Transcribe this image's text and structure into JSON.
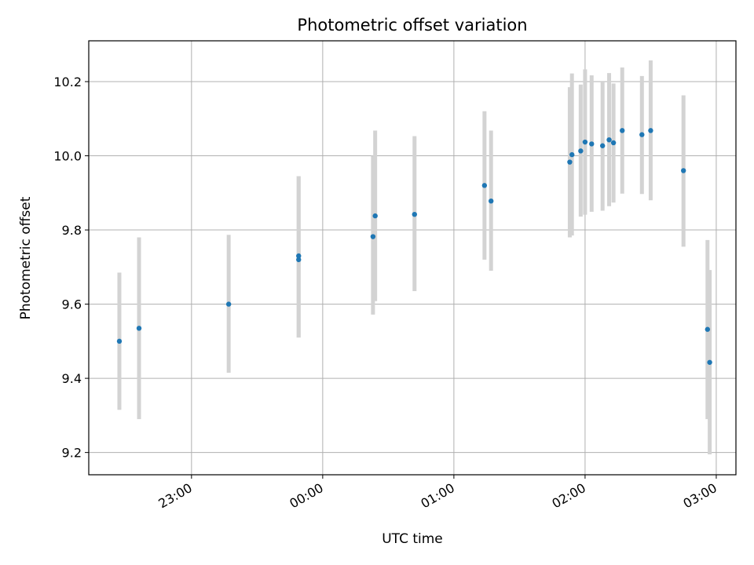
{
  "chart_data": {
    "type": "scatter",
    "title": "Photometric offset variation",
    "xlabel": "UTC time",
    "ylabel": "Photometric offset",
    "xlim": [
      "22:13",
      "03:09"
    ],
    "ylim": [
      9.14,
      10.31
    ],
    "grid": true,
    "xticks": [
      "23:00",
      "00:00",
      "01:00",
      "02:00",
      "03:00"
    ],
    "yticks": [
      "9.2",
      "9.4",
      "9.6",
      "9.8",
      "10.0",
      "10.2"
    ],
    "marker_color": "#1f77b4",
    "errorbar_color": "#d3d3d3",
    "points": [
      {
        "t": "22:27",
        "y": 9.5,
        "lo": 9.315,
        "hi": 9.685
      },
      {
        "t": "22:36",
        "y": 9.535,
        "lo": 9.29,
        "hi": 9.78
      },
      {
        "t": "23:17",
        "y": 9.6,
        "lo": 9.415,
        "hi": 9.787
      },
      {
        "t": "23:49",
        "y": 9.72,
        "lo": 9.51,
        "hi": 9.945
      },
      {
        "t": "23:49",
        "y": 9.73,
        "lo": 9.51,
        "hi": 9.945
      },
      {
        "t": "00:23",
        "y": 9.782,
        "lo": 9.572,
        "hi": 10.0
      },
      {
        "t": "00:24",
        "y": 9.838,
        "lo": 9.608,
        "hi": 10.068
      },
      {
        "t": "00:42",
        "y": 9.842,
        "lo": 9.635,
        "hi": 10.053
      },
      {
        "t": "01:14",
        "y": 9.92,
        "lo": 9.72,
        "hi": 10.12
      },
      {
        "t": "01:17",
        "y": 9.878,
        "lo": 9.69,
        "hi": 10.068
      },
      {
        "t": "01:53",
        "y": 9.983,
        "lo": 9.78,
        "hi": 10.185
      },
      {
        "t": "01:54",
        "y": 10.003,
        "lo": 9.785,
        "hi": 10.222
      },
      {
        "t": "01:58",
        "y": 10.013,
        "lo": 9.836,
        "hi": 10.192
      },
      {
        "t": "02:00",
        "y": 10.037,
        "lo": 9.841,
        "hi": 10.233
      },
      {
        "t": "02:03",
        "y": 10.032,
        "lo": 9.849,
        "hi": 10.217
      },
      {
        "t": "02:08",
        "y": 10.027,
        "lo": 9.852,
        "hi": 10.2
      },
      {
        "t": "02:11",
        "y": 10.043,
        "lo": 9.864,
        "hi": 10.223
      },
      {
        "t": "02:13",
        "y": 10.035,
        "lo": 9.874,
        "hi": 10.195
      },
      {
        "t": "02:17",
        "y": 10.068,
        "lo": 9.898,
        "hi": 10.238
      },
      {
        "t": "02:26",
        "y": 10.057,
        "lo": 9.897,
        "hi": 10.215
      },
      {
        "t": "02:30",
        "y": 10.068,
        "lo": 9.88,
        "hi": 10.257
      },
      {
        "t": "02:45",
        "y": 9.96,
        "lo": 9.755,
        "hi": 10.163
      },
      {
        "t": "02:56",
        "y": 9.532,
        "lo": 9.29,
        "hi": 9.773
      },
      {
        "t": "02:57",
        "y": 9.443,
        "lo": 9.195,
        "hi": 9.692
      }
    ]
  }
}
